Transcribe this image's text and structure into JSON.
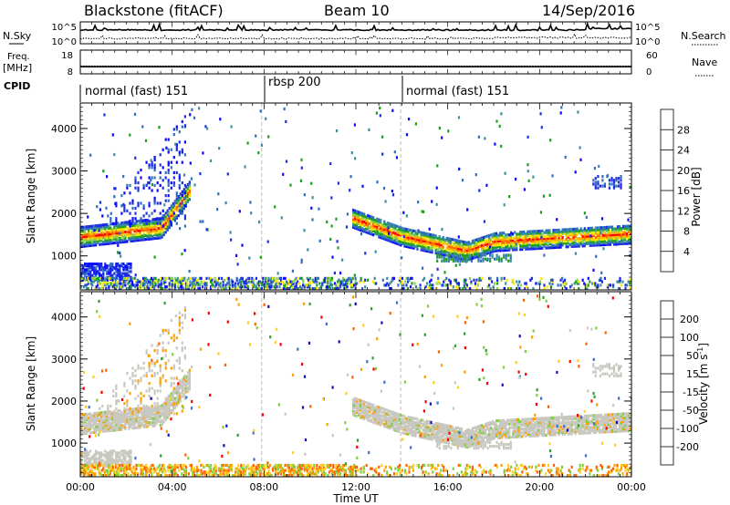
{
  "header": {
    "station": "Blackstone (fitACF)",
    "beam": "Beam 10",
    "date": "14/Sep/2016"
  },
  "chart_data": [
    {
      "type": "line",
      "panel": "noise",
      "left_label": "N.Sky",
      "right_label": "N.Search",
      "left_ticks": [
        "10^5",
        "10^0"
      ],
      "right_ticks": [
        "10^5",
        "10^0"
      ]
    },
    {
      "type": "line",
      "panel": "frequency",
      "left_label_1": "Freq.",
      "left_label_2": "[MHz]",
      "right_label": "Nave",
      "left_ticks": [
        "18",
        "8"
      ],
      "right_ticks": [
        "60",
        "0"
      ],
      "freq_mhz": 11,
      "nave": 20
    },
    {
      "type": "table",
      "panel": "cpid",
      "label": "CPID",
      "modes": [
        {
          "name": "normal (fast) 151",
          "start_h": 0,
          "end_h": 7.9
        },
        {
          "name": "rbsp 200",
          "start_h": 7.9,
          "end_h": 13.95
        },
        {
          "name": "normal (fast) 151",
          "start_h": 13.95,
          "end_h": 24
        }
      ]
    },
    {
      "type": "heatmap",
      "panel": "power",
      "ylabel": "Slant Range [km]",
      "y_ticks": [
        1000,
        2000,
        3000,
        4000
      ],
      "ylim": [
        200,
        4600
      ],
      "xlim": [
        0,
        24
      ],
      "colorbar_label": "Power [dB]",
      "colorbar_ticks": [
        "28",
        "24",
        "20",
        "16",
        "12",
        "8",
        "4"
      ],
      "colors": [
        "#ff0000",
        "#ff6a00",
        "#ffb000",
        "#ffe800",
        "#8cd050",
        "#1ea01e",
        "#4090a0",
        "#3070c0",
        "#2030e0",
        "#0a0aff"
      ]
    },
    {
      "type": "heatmap",
      "panel": "velocity",
      "ylabel": "Slant Range [km]",
      "y_ticks": [
        1000,
        2000,
        3000,
        4000
      ],
      "ylim": [
        200,
        4600
      ],
      "xlim": [
        0,
        24
      ],
      "xlabel": "Time UT",
      "x_ticks": [
        "00:00",
        "04:00",
        "08:00",
        "12:00",
        "16:00",
        "20:00",
        "00:00"
      ],
      "colorbar_label": "Velocity [m s",
      "colorbar_sup": "-1",
      "colorbar_close": "]",
      "colorbar_ticks": [
        "200",
        "100",
        "50",
        "15",
        "-15",
        "-50",
        "-100",
        "-200"
      ],
      "colors": [
        "#1010c0",
        "#4070d0",
        "#30a030",
        "#80d040",
        "#c8c8c0",
        "#ffd020",
        "#ffa000",
        "#ff6000",
        "#ff0000"
      ]
    }
  ]
}
